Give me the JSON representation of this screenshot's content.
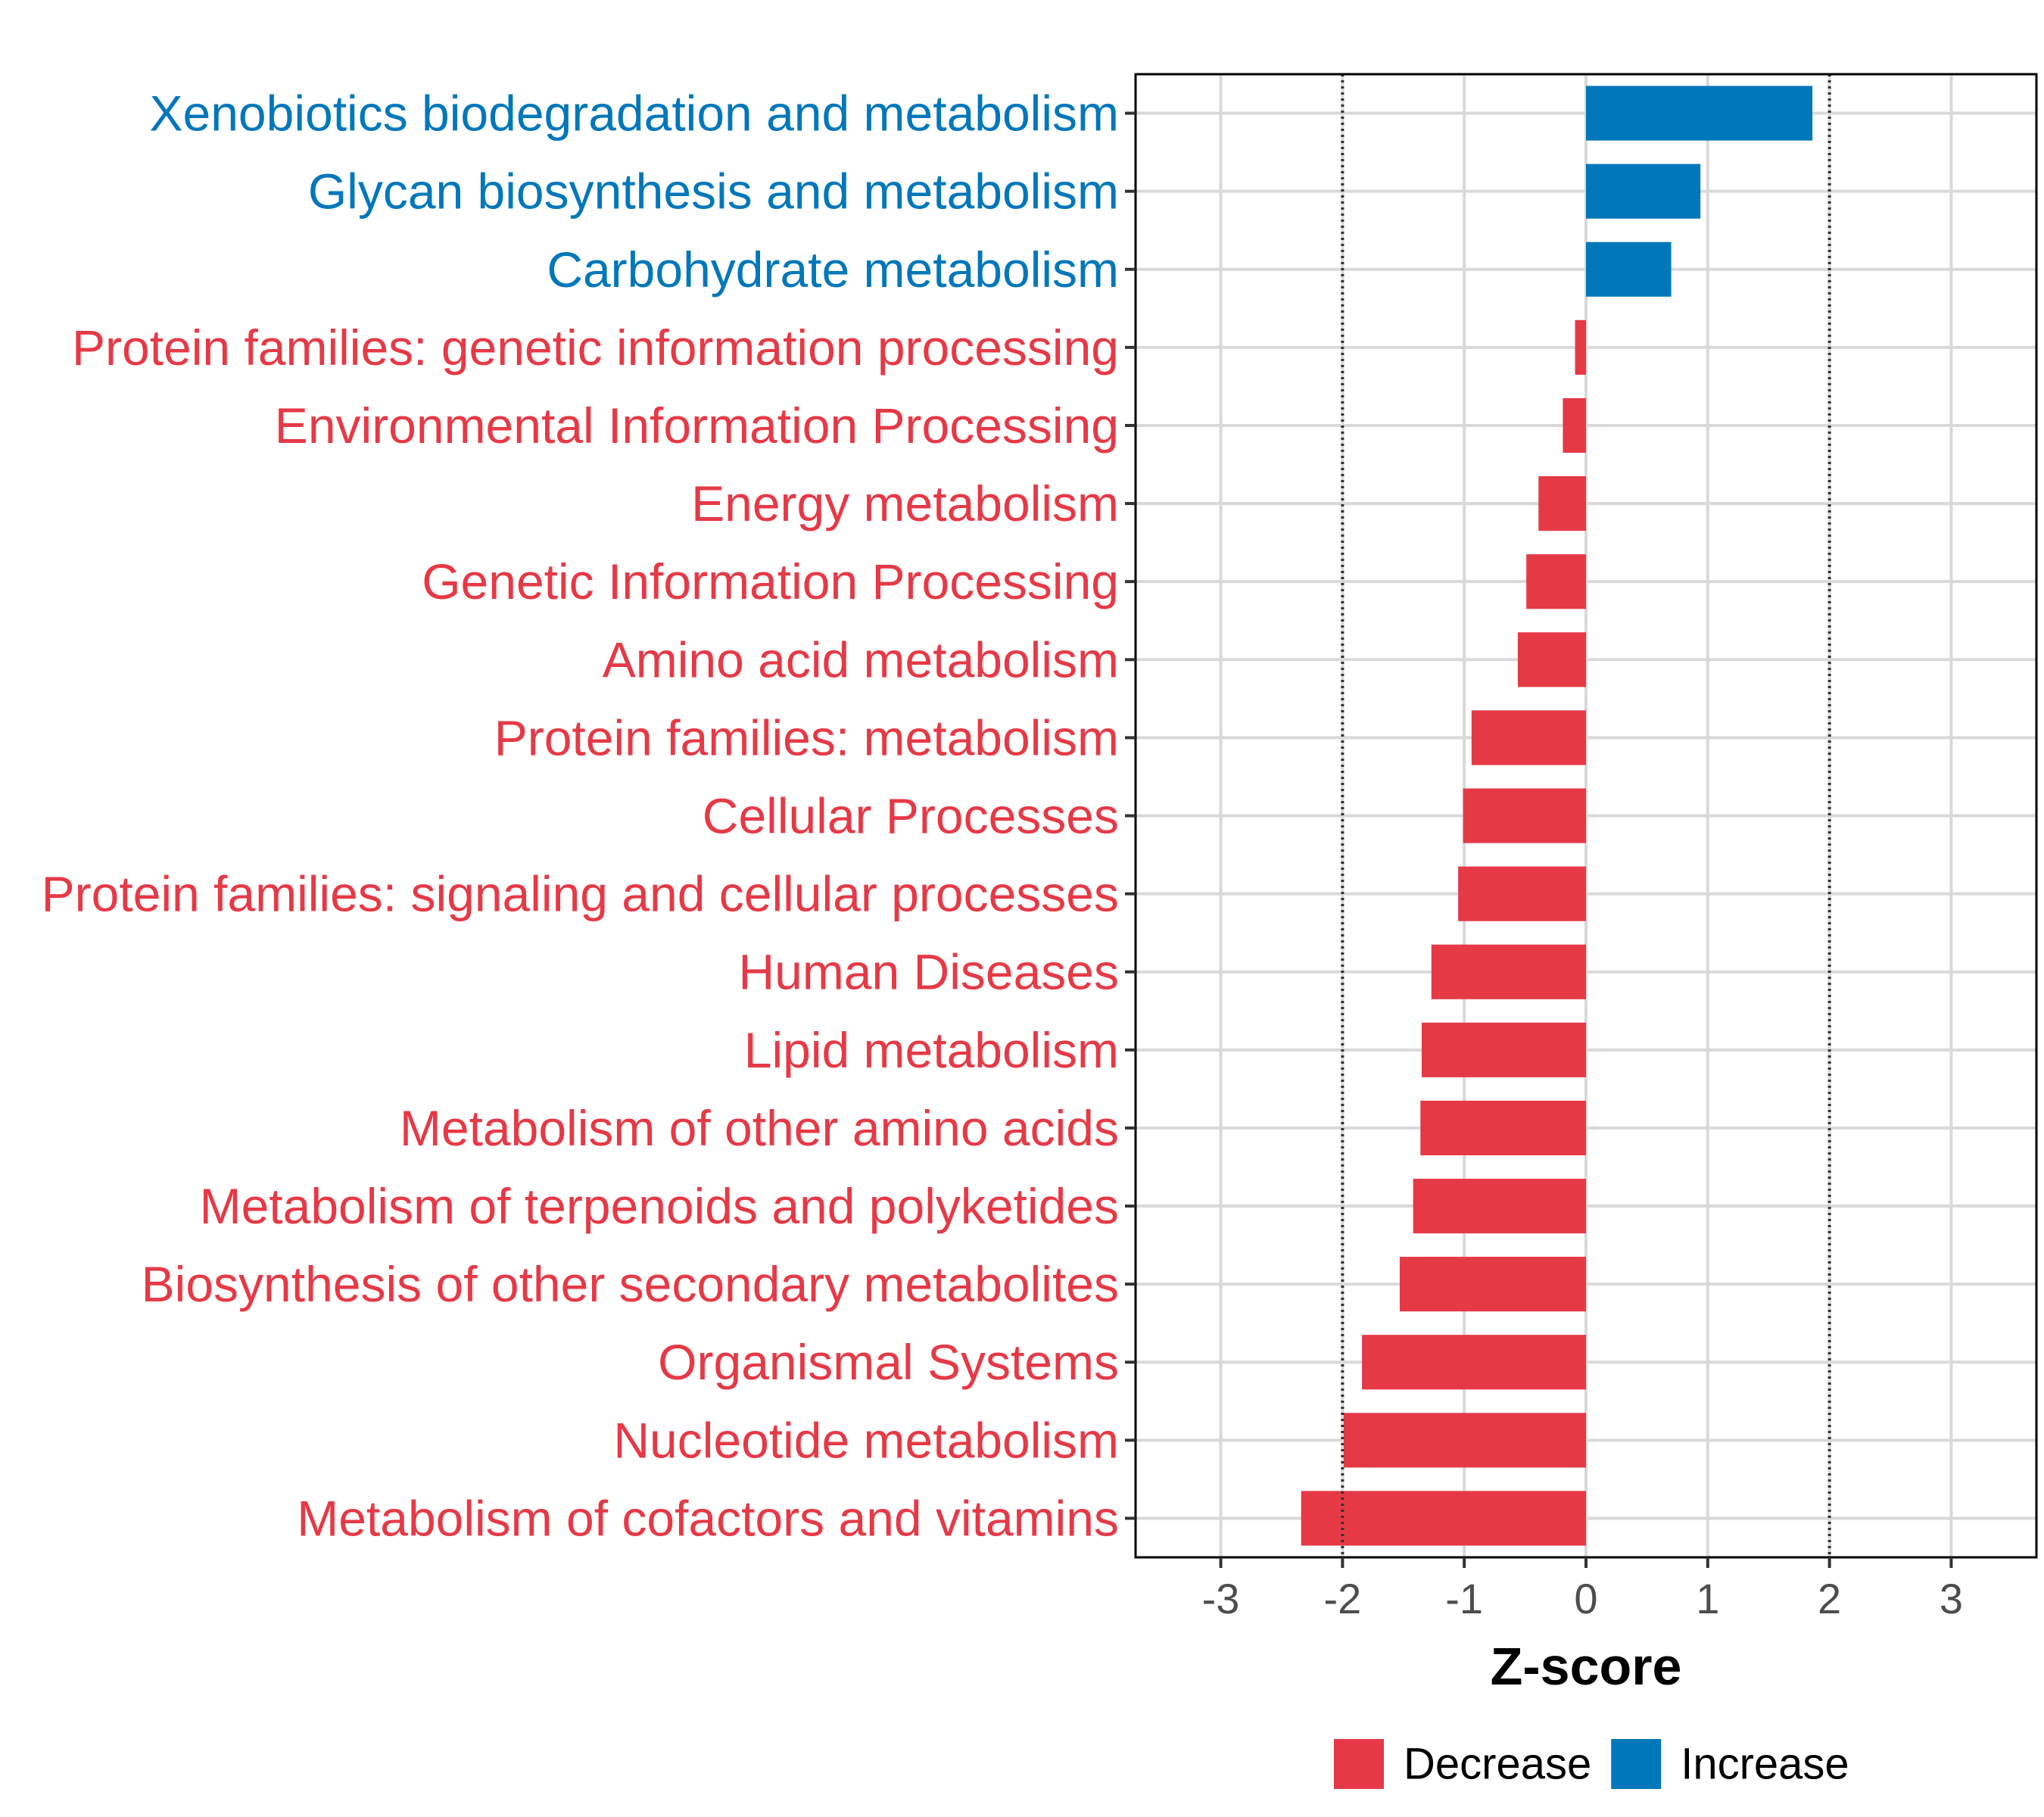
{
  "chart_data": {
    "type": "bar",
    "orientation": "horizontal",
    "xlabel": "Z-score",
    "xlim": [
      -3.7,
      3.7
    ],
    "xticks": [
      -3,
      -2,
      -1,
      0,
      1,
      2,
      3
    ],
    "xtick_labels": [
      "-3",
      "-2",
      "-1",
      "0",
      "1",
      "2",
      "3"
    ],
    "reference_lines": [
      -2,
      2
    ],
    "grid": true,
    "categories": [
      "Xenobiotics biodegradation and metabolism",
      "Glycan biosynthesis and metabolism",
      "Carbohydrate metabolism",
      "Protein families: genetic information processing",
      "Environmental Information Processing",
      "Energy metabolism",
      "Genetic Information Processing",
      "Amino acid metabolism",
      "Protein families: metabolism",
      "Cellular Processes",
      "Protein families: signaling and cellular processes",
      "Human Diseases",
      "Lipid metabolism",
      "Metabolism of other amino acids",
      "Metabolism of terpenoids and polyketides",
      "Biosynthesis of other secondary metabolites",
      "Organismal Systems",
      "Nucleotide metabolism",
      "Metabolism of cofactors and vitamins"
    ],
    "values": [
      1.86,
      0.94,
      0.7,
      -0.09,
      -0.19,
      -0.39,
      -0.49,
      -0.56,
      -0.94,
      -1.01,
      -1.05,
      -1.27,
      -1.35,
      -1.36,
      -1.42,
      -1.53,
      -1.84,
      -1.99,
      -2.34
    ],
    "groups": [
      "Increase",
      "Increase",
      "Increase",
      "Decrease",
      "Decrease",
      "Decrease",
      "Decrease",
      "Decrease",
      "Decrease",
      "Decrease",
      "Decrease",
      "Decrease",
      "Decrease",
      "Decrease",
      "Decrease",
      "Decrease",
      "Decrease",
      "Decrease",
      "Decrease"
    ],
    "legend": [
      {
        "label": "Decrease",
        "color": "#E63946"
      },
      {
        "label": "Increase",
        "color": "#0077BB"
      }
    ],
    "legend_position": "bottom"
  }
}
